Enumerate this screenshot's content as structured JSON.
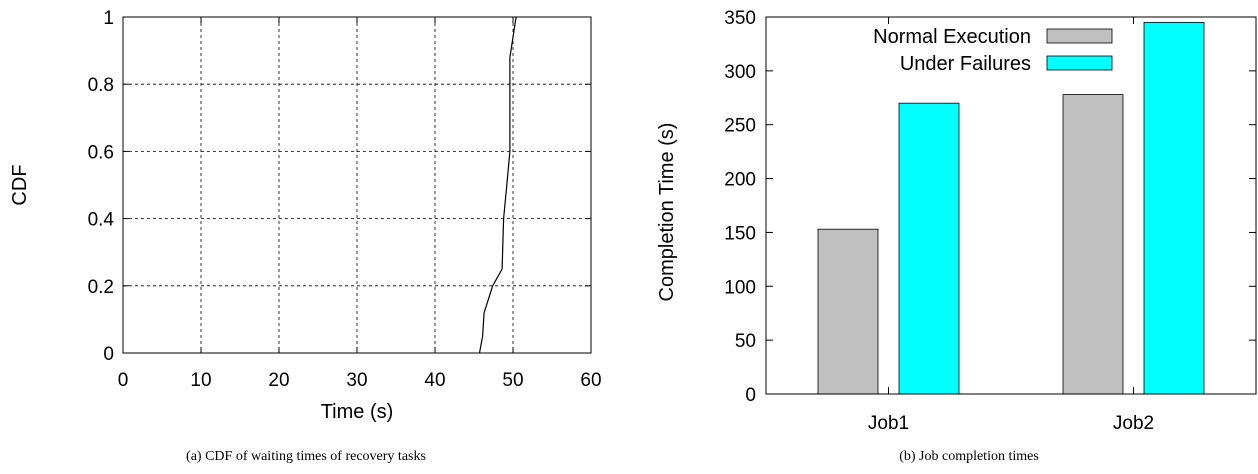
{
  "chart_data": [
    {
      "type": "line",
      "xlabel": "Time (s)",
      "ylabel": "CDF",
      "xlim": [
        0,
        60
      ],
      "ylim": [
        0,
        1
      ],
      "xticks": [
        "0",
        "10",
        "20",
        "30",
        "40",
        "50",
        "60"
      ],
      "yticks": [
        "0",
        "0.2",
        "0.4",
        "0.6",
        "0.8",
        "1"
      ],
      "grid": true,
      "series": [
        {
          "x": [
            45.7,
            46.1,
            46.3,
            47.4,
            48.6,
            48.8,
            49.2,
            49.6,
            49.6,
            50.0,
            50.4
          ],
          "y": [
            0.0,
            0.05,
            0.12,
            0.2,
            0.25,
            0.4,
            0.5,
            0.6,
            0.88,
            0.94,
            1.0
          ]
        }
      ],
      "caption": "(a)  CDF of waiting times of recovery tasks"
    },
    {
      "type": "bar",
      "ylabel": "Completion Time (s)",
      "ylim": [
        0,
        350
      ],
      "yticks": [
        "0",
        "50",
        "100",
        "150",
        "200",
        "250",
        "300",
        "350"
      ],
      "categories": [
        "Job1",
        "Job2"
      ],
      "legend_position": "top-right",
      "series": [
        {
          "name": "Normal Execution",
          "values": [
            153,
            278
          ],
          "color": "#c0c0c0"
        },
        {
          "name": "Under Failures",
          "values": [
            270,
            345
          ],
          "color": "#00ffff"
        }
      ],
      "caption": "(b)  Job completion times"
    }
  ]
}
